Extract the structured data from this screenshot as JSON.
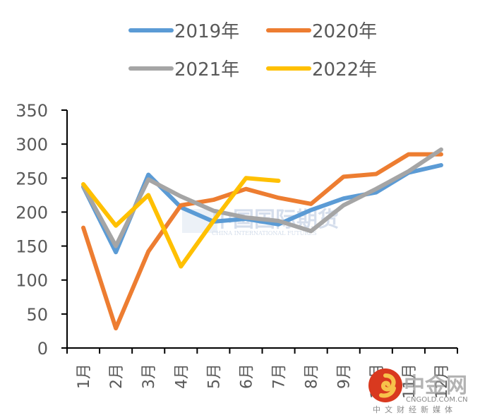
{
  "chart_data": {
    "type": "line",
    "title": "",
    "xlabel": "",
    "ylabel": "",
    "categories": [
      "1月",
      "2月",
      "3月",
      "4月",
      "5月",
      "6月",
      "7月",
      "8月",
      "9月",
      "10月",
      "11月",
      "12月"
    ],
    "ylim": [
      0,
      350
    ],
    "yticks": [
      0,
      50,
      100,
      150,
      200,
      250,
      300,
      350
    ],
    "grid": false,
    "legend_position": "top",
    "series": [
      {
        "name": "2019年",
        "color": "#5B9BD5",
        "values": [
          237,
          141,
          255,
          207,
          186,
          190,
          182,
          203,
          220,
          229,
          258,
          269
        ]
      },
      {
        "name": "2020年",
        "color": "#ED7D31",
        "values": [
          177,
          29,
          142,
          210,
          218,
          234,
          221,
          212,
          252,
          256,
          285,
          285
        ]
      },
      {
        "name": "2021年",
        "color": "#A5A5A5",
        "values": [
          238,
          150,
          248,
          223,
          202,
          192,
          187,
          172,
          210,
          234,
          260,
          292
        ]
      },
      {
        "name": "2022年",
        "color": "#FFC000",
        "values": [
          241,
          180,
          225,
          120,
          187,
          250,
          246
        ]
      }
    ]
  },
  "watermark": {
    "text": "中国国际期货",
    "subtext": "CHINA INTERNATIONAL FUTURES"
  },
  "logo": {
    "name": "中金网",
    "url": "CNGOLD.COM.CN",
    "slogan": "中文财经新媒体"
  }
}
